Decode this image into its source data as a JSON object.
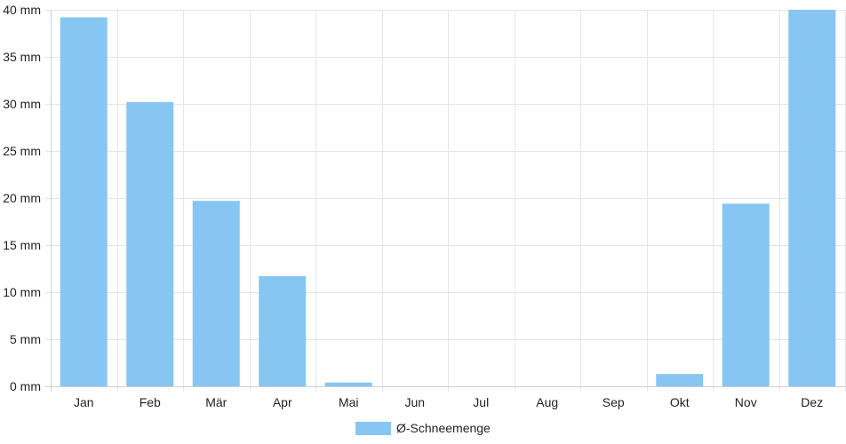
{
  "chart_data": {
    "type": "bar",
    "categories": [
      "Jan",
      "Feb",
      "Mär",
      "Apr",
      "Mai",
      "Jun",
      "Jul",
      "Aug",
      "Sep",
      "Okt",
      "Nov",
      "Dez"
    ],
    "series": [
      {
        "name": "Ø-Schneemenge",
        "values": [
          39.2,
          30.2,
          19.7,
          11.7,
          0.4,
          0,
          0,
          0,
          0,
          1.3,
          19.4,
          40.0
        ],
        "color": "#87C6F2"
      }
    ],
    "y_unit": "mm",
    "ylim": [
      0,
      40
    ],
    "y_ticks": [
      0,
      5,
      10,
      15,
      20,
      25,
      30,
      35,
      40
    ],
    "y_tick_labels": [
      "0 mm",
      "5 mm",
      "10 mm",
      "15 mm",
      "20 mm",
      "25 mm",
      "30 mm",
      "35 mm",
      "40 mm"
    ],
    "grid": true,
    "legend": {
      "position": "bottom",
      "label": "Ø-Schneemenge"
    }
  }
}
